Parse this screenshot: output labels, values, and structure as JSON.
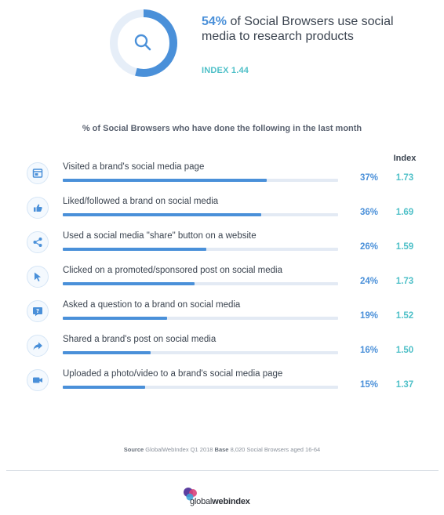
{
  "hero": {
    "percent": "54%",
    "headline_rest": " of Social Browsers use social media to research products",
    "index_text": "INDEX 1.44",
    "donut_fraction": 0.54,
    "icon": "search-icon"
  },
  "chart_data": {
    "type": "bar",
    "title": "% of Social Browsers who have done the following in the last month",
    "index_header": "Index",
    "categories": [
      "Visited a brand's social media page",
      "Liked/followed a brand on social media",
      "Used a social media \"share\" button on a website",
      "Clicked on a promoted/sponsored post on social media",
      "Asked a question to a brand on social media",
      "Shared a brand's post on social media",
      "Uploaded a photo/video to a brand's social media page"
    ],
    "values": [
      37,
      36,
      26,
      24,
      19,
      16,
      15
    ],
    "value_labels": [
      "37%",
      "36%",
      "26%",
      "24%",
      "19%",
      "16%",
      "15%"
    ],
    "index_values": [
      "1.73",
      "1.69",
      "1.59",
      "1.73",
      "1.52",
      "1.50",
      "1.37"
    ],
    "icons": [
      "browser-window-icon",
      "thumbs-up-icon",
      "share-icon",
      "cursor-icon",
      "question-bubble-icon",
      "forward-arrow-icon",
      "video-camera-icon"
    ],
    "xlim": [
      0,
      50
    ],
    "bar_color": "#4a90d9",
    "track_color": "#e3eaf4",
    "index_color": "#4fc0c8"
  },
  "source": {
    "label": "Source",
    "text1": " GlobalWebIndex Q1 2018 ",
    "base_label": "Base",
    "text2": " 8,020 Social Browsers aged 16-64"
  },
  "logo": {
    "light": "global",
    "bold": "webindex"
  }
}
